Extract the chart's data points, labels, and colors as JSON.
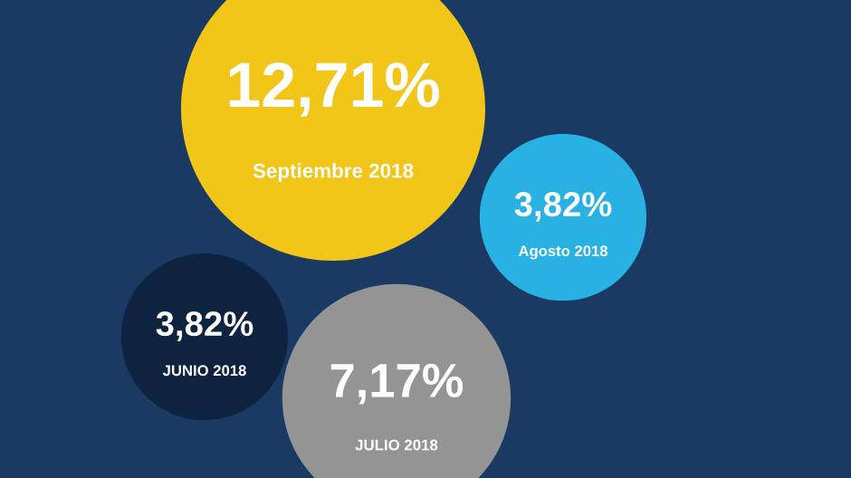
{
  "chart_data": {
    "type": "other",
    "categories": [
      "Septiembre 2018",
      "Agosto 2018",
      "JUNIO 2018",
      "JULIO 2018"
    ],
    "values": [
      12.71,
      3.82,
      3.82,
      7.17
    ],
    "value_labels": [
      "12,71%",
      "3,82%",
      "3,82%",
      "7,17%"
    ],
    "colors": [
      "#f2c619",
      "#27b2e3",
      "#0e2340",
      "#949494"
    ]
  }
}
